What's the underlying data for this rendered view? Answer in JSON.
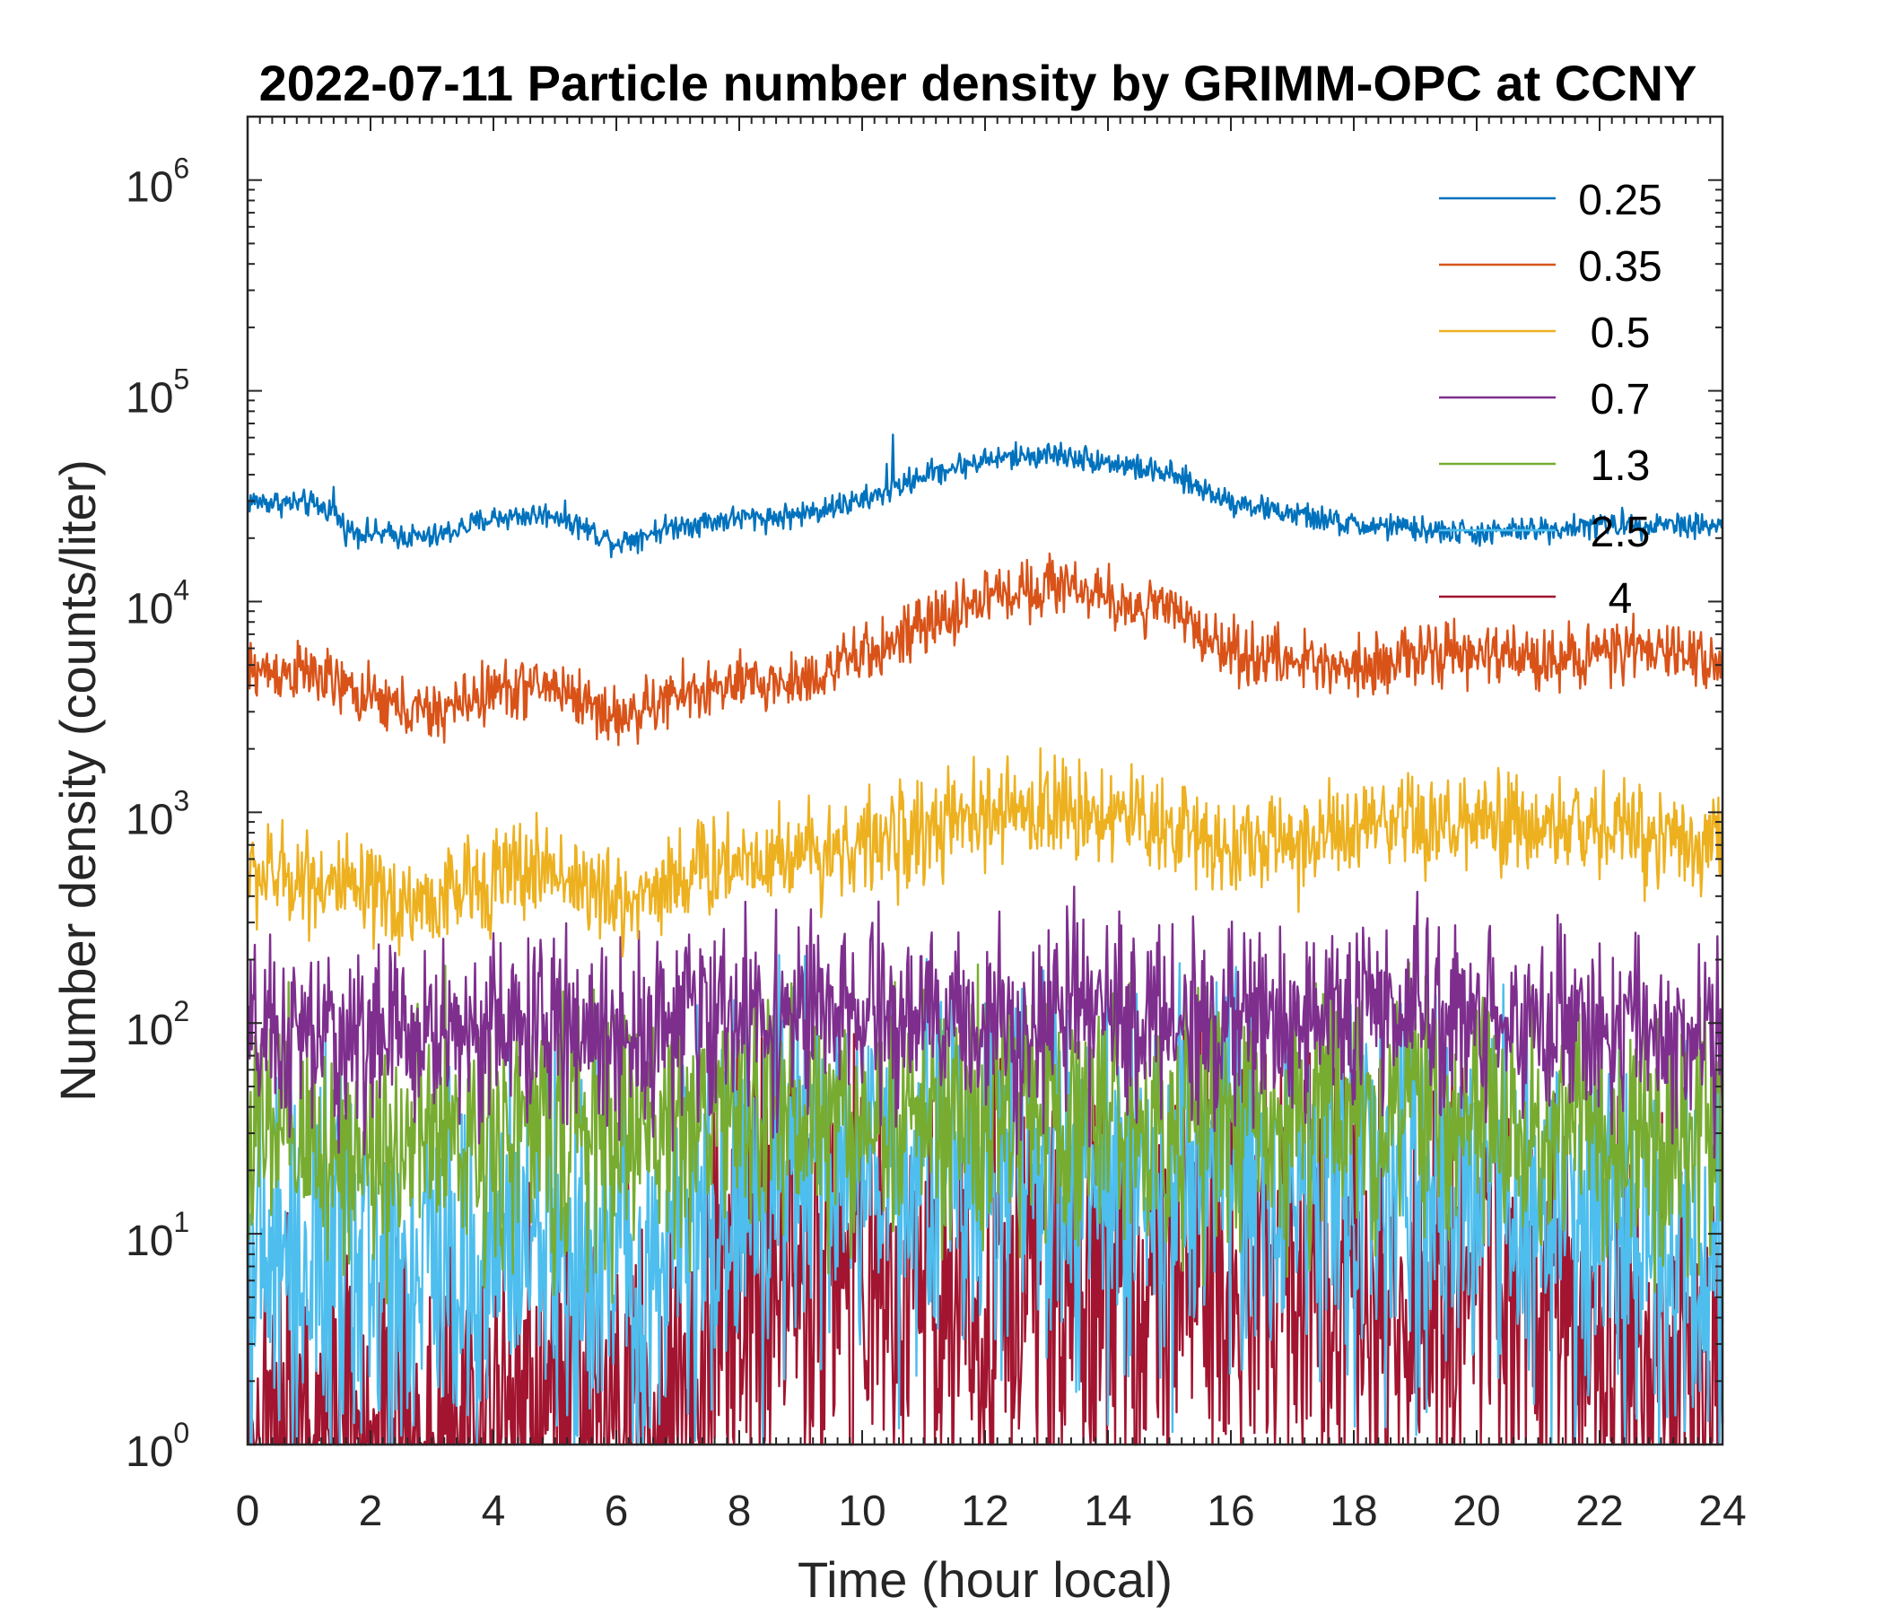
{
  "chart_data": {
    "type": "line",
    "title": "2022-07-11 Particle number density by GRIMM-OPC at CCNY",
    "xlabel": "Time (hour local)",
    "ylabel": "Number density (counts/liter)",
    "xlim": [
      0,
      24
    ],
    "ylim": [
      1,
      2000000
    ],
    "yscale": "log",
    "x_ticks": [
      "0",
      "2",
      "4",
      "6",
      "8",
      "10",
      "12",
      "14",
      "16",
      "18",
      "20",
      "22",
      "24"
    ],
    "y_ticks": [
      {
        "base": "10",
        "exp": "0"
      },
      {
        "base": "10",
        "exp": "1"
      },
      {
        "base": "10",
        "exp": "2"
      },
      {
        "base": "10",
        "exp": "3"
      },
      {
        "base": "10",
        "exp": "4"
      },
      {
        "base": "10",
        "exp": "5"
      },
      {
        "base": "10",
        "exp": "6"
      }
    ],
    "legend_position": "top-right",
    "series": [
      {
        "name": "0.25",
        "color": "#0072BD",
        "x": [
          0,
          1,
          1.4,
          1.6,
          2,
          3,
          3.4,
          4,
          5,
          6,
          6.5,
          7,
          8,
          8.5,
          9,
          10,
          10.5,
          11,
          12,
          13,
          13.5,
          14,
          15,
          16,
          17,
          18,
          19,
          20,
          21,
          22,
          23,
          24
        ],
        "values": [
          30000,
          29000,
          27000,
          22000,
          21000,
          20000,
          22000,
          25000,
          26000,
          19000,
          21000,
          23000,
          25000,
          25000,
          26000,
          30000,
          34000,
          40000,
          47000,
          50000,
          49000,
          46000,
          40000,
          30000,
          26000,
          23000,
          22000,
          21000,
          22000,
          23000,
          23500,
          23000
        ],
        "noise": 0.03,
        "spikes": [
          [
            1.4,
            35000
          ],
          [
            10.5,
            62000
          ],
          [
            9.7,
            32000
          ],
          [
            10.4,
            45000
          ],
          [
            13.6,
            42000
          ],
          [
            16.6,
            31000
          ],
          [
            18.6,
            26000
          ],
          [
            9.4,
            31000
          ]
        ]
      },
      {
        "name": "0.35",
        "color": "#D95319",
        "x": [
          0,
          1,
          2,
          3,
          4,
          5,
          6,
          6.5,
          7,
          8,
          9,
          10,
          11,
          12,
          13,
          13.5,
          14,
          15,
          16,
          17,
          18,
          19,
          20,
          21,
          22,
          23,
          24
        ],
        "values": [
          4700,
          4600,
          3400,
          2900,
          3800,
          4000,
          2800,
          3100,
          3600,
          4000,
          4200,
          5500,
          7500,
          10500,
          12000,
          12000,
          10000,
          9000,
          5800,
          5200,
          5000,
          5500,
          5600,
          5400,
          5700,
          5800,
          5300
        ],
        "noise": 0.07,
        "spikes": [
          [
            6,
            2400
          ],
          [
            13.8,
            13500
          ],
          [
            14.7,
            11500
          ],
          [
            18.4,
            4300
          ]
        ]
      },
      {
        "name": "0.5",
        "color": "#EDB120",
        "x": [
          0,
          1,
          2,
          3,
          4,
          5,
          6,
          6.5,
          7,
          8,
          9,
          10,
          11,
          12,
          13,
          14,
          15,
          16,
          17,
          18,
          19,
          20,
          21,
          22,
          23,
          24
        ],
        "values": [
          500,
          500,
          380,
          370,
          500,
          550,
          360,
          420,
          500,
          600,
          650,
          700,
          800,
          950,
          1050,
          1000,
          850,
          700,
          720,
          800,
          850,
          850,
          850,
          850,
          800,
          700
        ],
        "noise": 0.12,
        "spikes": [
          [
            13.9,
            1600
          ],
          [
            14.8,
            1350
          ],
          [
            19.8,
            1450
          ],
          [
            2.4,
            260
          ]
        ]
      },
      {
        "name": "0.7",
        "color": "#7E2F8E",
        "x": [
          0,
          2,
          4,
          6,
          8,
          10,
          12,
          14,
          16,
          18,
          20,
          22,
          24
        ],
        "values": [
          80,
          85,
          95,
          90,
          110,
          105,
          100,
          110,
          100,
          110,
          110,
          95,
          80
        ],
        "noise": 0.22,
        "spikes": [
          [
            17.9,
            210
          ]
        ]
      },
      {
        "name": "1.3",
        "color": "#77AC30",
        "x": [
          0,
          2,
          4,
          6,
          8,
          10,
          12,
          14,
          16,
          18,
          20,
          22,
          24
        ],
        "values": [
          28,
          26,
          30,
          30,
          38,
          36,
          35,
          36,
          35,
          38,
          36,
          30,
          28
        ],
        "noise": 0.3,
        "spikes": []
      },
      {
        "name": "2.5",
        "color": "#4DBEEE",
        "x": [
          0,
          2,
          4,
          6,
          7,
          8,
          10,
          12,
          14,
          16,
          18,
          20,
          22,
          24
        ],
        "values": [
          7,
          7,
          8,
          8,
          10,
          16,
          20,
          19,
          18,
          17,
          17,
          16,
          11,
          7
        ],
        "noise": 0.45,
        "spikes": []
      },
      {
        "name": "4",
        "color": "#A2142F",
        "x": [
          0,
          2,
          4,
          6,
          7,
          7.6,
          8,
          10,
          12,
          14,
          16,
          18,
          20,
          21,
          22,
          24
        ],
        "values": [
          1,
          1,
          1,
          1,
          1.5,
          4,
          5,
          6,
          5.5,
          5.5,
          5.5,
          6,
          5,
          4,
          2,
          1.5
        ],
        "noise": 0.55,
        "spikes": []
      }
    ]
  }
}
